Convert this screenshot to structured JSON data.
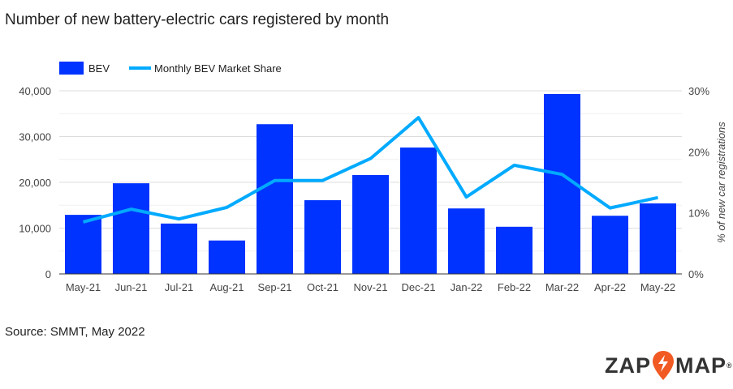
{
  "chart_data": {
    "type": "bar+line",
    "title": "Number of new battery-electric cars registered by month",
    "categories": [
      "May-21",
      "Jun-21",
      "Jul-21",
      "Aug-21",
      "Sep-21",
      "Oct-21",
      "Nov-21",
      "Dec-21",
      "Jan-22",
      "Feb-22",
      "Mar-22",
      "Apr-22",
      "May-22"
    ],
    "series": [
      {
        "name": "BEV",
        "type": "bar",
        "axis": "left",
        "color": "#0033ff",
        "values": [
          12900,
          19800,
          11000,
          7300,
          32700,
          16100,
          21600,
          27600,
          14300,
          10300,
          39300,
          12700,
          15400
        ]
      },
      {
        "name": "Monthly BEV Market Share",
        "type": "line",
        "axis": "right",
        "color": "#00aaff",
        "values": [
          8.5,
          10.6,
          9.0,
          10.9,
          15.3,
          15.3,
          18.9,
          25.6,
          12.6,
          17.8,
          16.3,
          10.8,
          12.5
        ]
      }
    ],
    "yleft": {
      "ticks": [
        "0",
        "10,000",
        "20,000",
        "30,000",
        "40,000"
      ],
      "lim": [
        0,
        40000
      ]
    },
    "yright": {
      "label": "% of new car registrations",
      "ticks": [
        "0%",
        "10%",
        "20%",
        "30%"
      ],
      "lim": [
        0,
        30
      ]
    },
    "grid": true,
    "legend": "top-left"
  },
  "source": "Source: SMMT, May 2022",
  "logo": {
    "left": "ZAP",
    "right": "MAP",
    "mark": "®"
  }
}
